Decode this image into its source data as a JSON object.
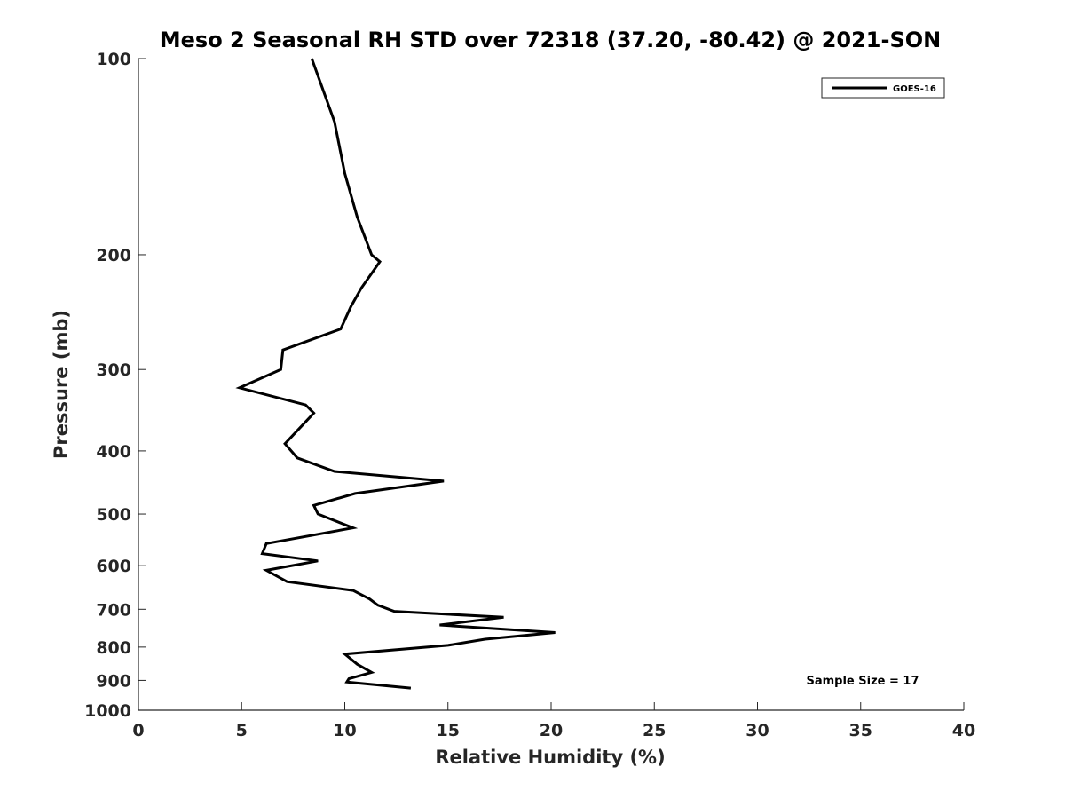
{
  "chart_data": {
    "type": "line",
    "title": "Meso 2 Seasonal RH STD over 72318 (37.20, -80.42) @ 2021-SON",
    "xlabel": "Relative Humidity (%)",
    "ylabel": "Pressure (mb)",
    "xlim": [
      0,
      40
    ],
    "ylim": [
      100,
      1000
    ],
    "y_scale": "log",
    "y_reversed": true,
    "xticks": [
      "0",
      "5",
      "10",
      "15",
      "20",
      "25",
      "30",
      "35",
      "40"
    ],
    "yticks": [
      "100",
      "200",
      "300",
      "400",
      "500",
      "600",
      "700",
      "800",
      "900",
      "1000"
    ],
    "grid": false,
    "legend_position": "top-right",
    "annotation": "Sample Size = 17",
    "series": [
      {
        "name": "GOES-16",
        "color": "#000000",
        "points": [
          [
            8.4,
            100
          ],
          [
            9.5,
            125
          ],
          [
            10.0,
            150
          ],
          [
            10.6,
            175
          ],
          [
            11.3,
            200
          ],
          [
            11.7,
            205
          ],
          [
            10.8,
            225
          ],
          [
            10.3,
            240
          ],
          [
            9.8,
            260
          ],
          [
            7.0,
            280
          ],
          [
            6.9,
            300
          ],
          [
            4.9,
            320
          ],
          [
            8.1,
            340
          ],
          [
            8.5,
            350
          ],
          [
            7.1,
            390
          ],
          [
            7.7,
            410
          ],
          [
            9.5,
            430
          ],
          [
            14.8,
            445
          ],
          [
            10.5,
            465
          ],
          [
            8.5,
            485
          ],
          [
            8.7,
            500
          ],
          [
            10.4,
            525
          ],
          [
            6.2,
            555
          ],
          [
            6.0,
            575
          ],
          [
            8.7,
            590
          ],
          [
            6.2,
            610
          ],
          [
            7.2,
            635
          ],
          [
            10.4,
            655
          ],
          [
            11.2,
            675
          ],
          [
            11.6,
            690
          ],
          [
            12.4,
            705
          ],
          [
            17.7,
            720
          ],
          [
            14.6,
            740
          ],
          [
            20.2,
            760
          ],
          [
            16.8,
            778
          ],
          [
            15.0,
            795
          ],
          [
            10.0,
            820
          ],
          [
            10.6,
            850
          ],
          [
            11.3,
            875
          ],
          [
            10.2,
            895
          ],
          [
            10.1,
            905
          ],
          [
            13.2,
            925
          ]
        ]
      }
    ]
  }
}
